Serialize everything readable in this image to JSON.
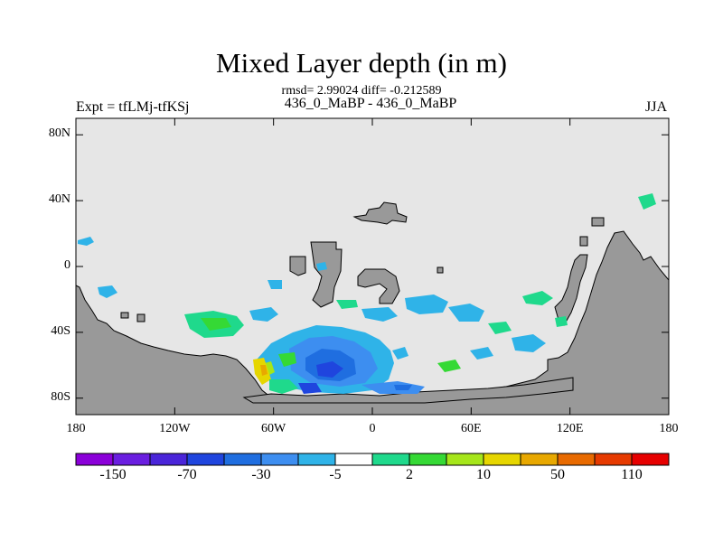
{
  "title": "Mixed Layer depth (in m)",
  "stats_line": "rmsd= 2.99024 diff= -0.212589",
  "experiment_label": "Expt = tfLMj-tfKSj",
  "cases_label": "436_0_MaBP - 436_0_MaBP",
  "season": "JJA",
  "map": {
    "lon_range": [
      -180,
      180
    ],
    "lat_range": [
      -90,
      90
    ],
    "lat_ticks": [
      {
        "value": 80,
        "label": "80N"
      },
      {
        "value": 40,
        "label": "40N"
      },
      {
        "value": 0,
        "label": "0"
      },
      {
        "value": -40,
        "label": "40S"
      },
      {
        "value": -80,
        "label": "80S"
      }
    ],
    "lon_ticks": [
      {
        "value": -180,
        "label": "180"
      },
      {
        "value": -120,
        "label": "120W"
      },
      {
        "value": -60,
        "label": "60W"
      },
      {
        "value": 0,
        "label": "0"
      },
      {
        "value": 60,
        "label": "60E"
      },
      {
        "value": 120,
        "label": "120E"
      },
      {
        "value": 180,
        "label": "180"
      }
    ],
    "colors": {
      "ocean_background": "#e6e6e6",
      "land": "#999999"
    }
  },
  "colorbar": {
    "colors": [
      "#8b00d9",
      "#6a1ee0",
      "#4a25d9",
      "#1f45de",
      "#1f6ee0",
      "#3d8ef0",
      "#2fb3e8",
      "#ffffff",
      "#1fd98c",
      "#35d935",
      "#a6e61a",
      "#e6d600",
      "#e8a800",
      "#e86a00",
      "#e63a00",
      "#e60000"
    ],
    "labels": [
      {
        "after_box": 1,
        "text": "-150"
      },
      {
        "after_box": 3,
        "text": "-70"
      },
      {
        "after_box": 5,
        "text": "-30"
      },
      {
        "after_box": 7,
        "text": "-5"
      },
      {
        "after_box": 9,
        "text": "2"
      },
      {
        "after_box": 11,
        "text": "10"
      },
      {
        "after_box": 13,
        "text": "50"
      },
      {
        "after_box": 15,
        "text": "110"
      }
    ]
  }
}
